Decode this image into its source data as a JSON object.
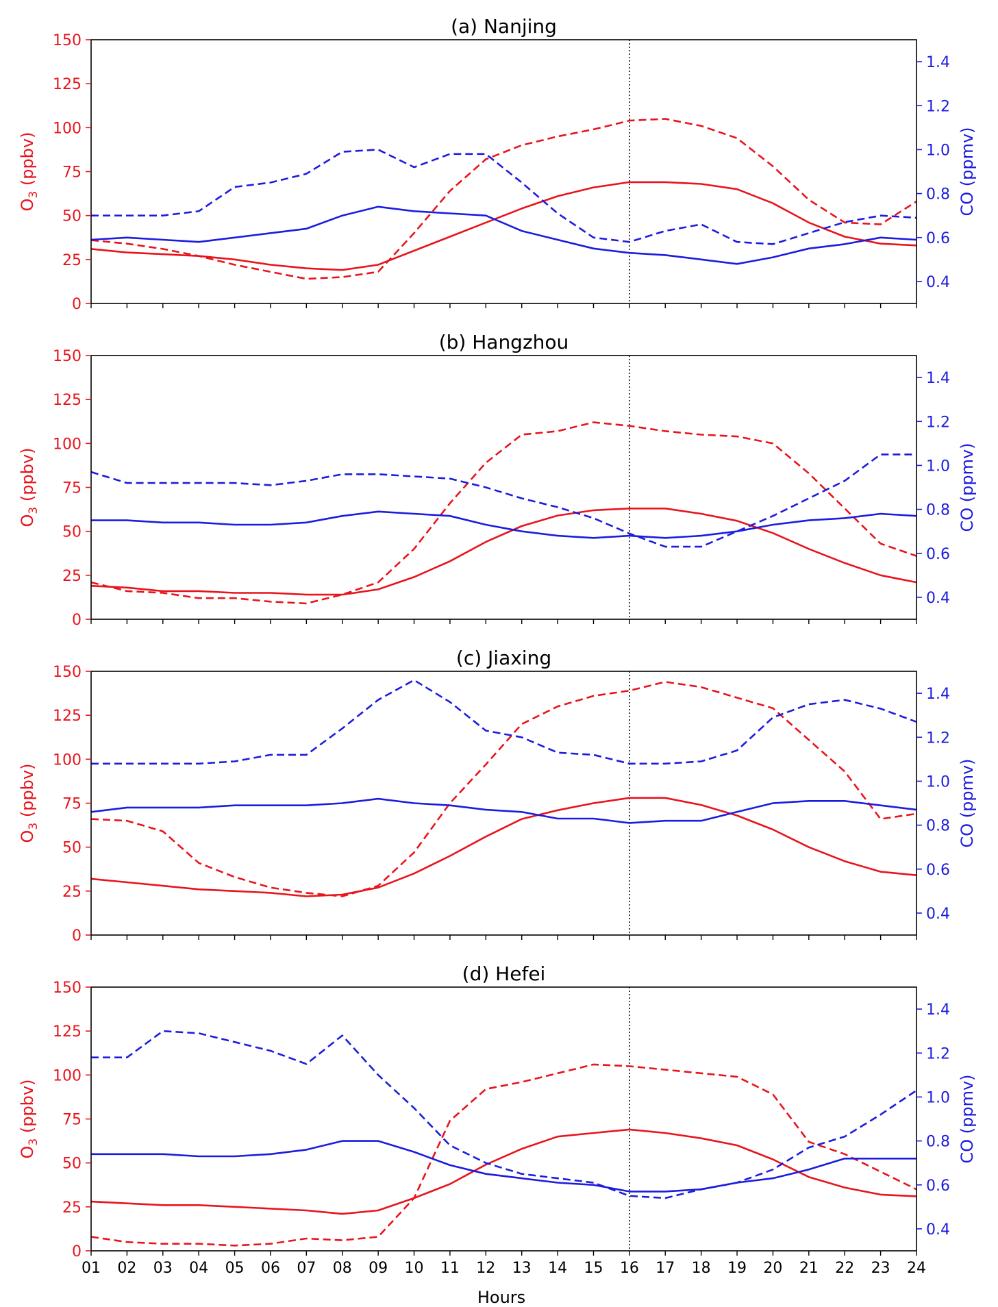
{
  "figure": {
    "xlabel": "Hours",
    "x_ticks": [
      "01",
      "02",
      "03",
      "04",
      "05",
      "06",
      "07",
      "08",
      "09",
      "10",
      "11",
      "12",
      "13",
      "14",
      "15",
      "16",
      "17",
      "18",
      "19",
      "20",
      "21",
      "22",
      "23",
      "24"
    ],
    "marker_hour": 16,
    "colors": {
      "o3": "#e8141c",
      "co": "#1c1ce0",
      "axis": "#000000"
    }
  },
  "chart_data": [
    {
      "type": "line",
      "title": "(a) Nanjing",
      "x": [
        1,
        2,
        3,
        4,
        5,
        6,
        7,
        8,
        9,
        10,
        11,
        12,
        13,
        14,
        15,
        16,
        17,
        18,
        19,
        20,
        21,
        22,
        23,
        24
      ],
      "ylabel_left": "O3 (ppbv)",
      "ylabel_right": "CO (ppmv)",
      "ylim_left": [
        0,
        150
      ],
      "ylim_right": [
        0.3,
        1.5
      ],
      "yticks_left": [
        0,
        25,
        50,
        75,
        100,
        125,
        150
      ],
      "yticks_right": [
        0.4,
        0.6,
        0.8,
        1.0,
        1.2,
        1.4
      ],
      "series": [
        {
          "name": "O3 solid",
          "axis": "left",
          "color": "o3",
          "dash": false,
          "values": [
            31,
            29,
            28,
            27,
            25,
            22,
            20,
            19,
            22,
            30,
            38,
            46,
            54,
            61,
            66,
            69,
            69,
            68,
            65,
            57,
            46,
            38,
            34,
            33
          ]
        },
        {
          "name": "O3 dashed",
          "axis": "left",
          "color": "o3",
          "dash": true,
          "values": [
            36,
            34,
            31,
            27,
            22,
            18,
            14,
            15,
            18,
            40,
            64,
            82,
            90,
            95,
            99,
            104,
            105,
            101,
            94,
            78,
            59,
            46,
            45,
            58
          ]
        },
        {
          "name": "CO solid",
          "axis": "right",
          "color": "co",
          "dash": false,
          "values": [
            0.59,
            0.6,
            0.59,
            0.58,
            0.6,
            0.62,
            0.64,
            0.7,
            0.74,
            0.72,
            0.71,
            0.7,
            0.63,
            0.59,
            0.55,
            0.53,
            0.52,
            0.5,
            0.48,
            0.51,
            0.55,
            0.57,
            0.6,
            0.59
          ]
        },
        {
          "name": "CO dashed",
          "axis": "right",
          "color": "co",
          "dash": true,
          "values": [
            0.7,
            0.7,
            0.7,
            0.72,
            0.83,
            0.85,
            0.89,
            0.99,
            1.0,
            0.92,
            0.98,
            0.98,
            0.85,
            0.71,
            0.6,
            0.58,
            0.63,
            0.66,
            0.58,
            0.57,
            0.62,
            0.67,
            0.7,
            0.69
          ]
        }
      ]
    },
    {
      "type": "line",
      "title": "(b) Hangzhou",
      "x": [
        1,
        2,
        3,
        4,
        5,
        6,
        7,
        8,
        9,
        10,
        11,
        12,
        13,
        14,
        15,
        16,
        17,
        18,
        19,
        20,
        21,
        22,
        23,
        24
      ],
      "ylabel_left": "O3 (ppbv)",
      "ylabel_right": "CO (ppmv)",
      "ylim_left": [
        0,
        150
      ],
      "ylim_right": [
        0.3,
        1.5
      ],
      "yticks_left": [
        0,
        25,
        50,
        75,
        100,
        125,
        150
      ],
      "yticks_right": [
        0.4,
        0.6,
        0.8,
        1.0,
        1.2,
        1.4
      ],
      "series": [
        {
          "name": "O3 solid",
          "axis": "left",
          "color": "o3",
          "dash": false,
          "values": [
            19,
            18,
            16,
            16,
            15,
            15,
            14,
            14,
            17,
            24,
            33,
            44,
            53,
            59,
            62,
            63,
            63,
            60,
            56,
            49,
            40,
            32,
            25,
            21
          ]
        },
        {
          "name": "O3 dashed",
          "axis": "left",
          "color": "o3",
          "dash": true,
          "values": [
            21,
            16,
            15,
            12,
            12,
            10,
            9,
            14,
            21,
            40,
            66,
            89,
            105,
            107,
            112,
            110,
            107,
            105,
            104,
            100,
            83,
            63,
            43,
            36
          ]
        },
        {
          "name": "CO solid",
          "axis": "right",
          "color": "co",
          "dash": false,
          "values": [
            0.75,
            0.75,
            0.74,
            0.74,
            0.73,
            0.73,
            0.74,
            0.77,
            0.79,
            0.78,
            0.77,
            0.73,
            0.7,
            0.68,
            0.67,
            0.68,
            0.67,
            0.68,
            0.7,
            0.73,
            0.75,
            0.76,
            0.78,
            0.77
          ]
        },
        {
          "name": "CO dashed",
          "axis": "right",
          "color": "co",
          "dash": true,
          "values": [
            0.97,
            0.92,
            0.92,
            0.92,
            0.92,
            0.91,
            0.93,
            0.96,
            0.96,
            0.95,
            0.94,
            0.9,
            0.85,
            0.81,
            0.76,
            0.69,
            0.63,
            0.63,
            0.7,
            0.77,
            0.85,
            0.93,
            1.05,
            1.05
          ]
        }
      ]
    },
    {
      "type": "line",
      "title": "(c) Jiaxing",
      "x": [
        1,
        2,
        3,
        4,
        5,
        6,
        7,
        8,
        9,
        10,
        11,
        12,
        13,
        14,
        15,
        16,
        17,
        18,
        19,
        20,
        21,
        22,
        23,
        24
      ],
      "ylabel_left": "O3 (ppbv)",
      "ylabel_right": "CO (ppmv)",
      "ylim_left": [
        0,
        150
      ],
      "ylim_right": [
        0.3,
        1.5
      ],
      "yticks_left": [
        0,
        25,
        50,
        75,
        100,
        125,
        150
      ],
      "yticks_right": [
        0.4,
        0.6,
        0.8,
        1.0,
        1.2,
        1.4
      ],
      "series": [
        {
          "name": "O3 solid",
          "axis": "left",
          "color": "o3",
          "dash": false,
          "values": [
            32,
            30,
            28,
            26,
            25,
            24,
            22,
            23,
            27,
            35,
            45,
            56,
            66,
            71,
            75,
            78,
            78,
            74,
            68,
            60,
            50,
            42,
            36,
            34
          ]
        },
        {
          "name": "O3 dashed",
          "axis": "left",
          "color": "o3",
          "dash": true,
          "values": [
            66,
            65,
            59,
            41,
            33,
            27,
            24,
            22,
            28,
            47,
            75,
            97,
            120,
            130,
            136,
            139,
            144,
            141,
            135,
            129,
            111,
            93,
            66,
            69
          ]
        },
        {
          "name": "CO solid",
          "axis": "right",
          "color": "co",
          "dash": false,
          "values": [
            0.86,
            0.88,
            0.88,
            0.88,
            0.89,
            0.89,
            0.89,
            0.9,
            0.92,
            0.9,
            0.89,
            0.87,
            0.86,
            0.83,
            0.83,
            0.81,
            0.82,
            0.82,
            0.86,
            0.9,
            0.91,
            0.91,
            0.89,
            0.87
          ]
        },
        {
          "name": "CO dashed",
          "axis": "right",
          "color": "co",
          "dash": true,
          "values": [
            1.08,
            1.08,
            1.08,
            1.08,
            1.09,
            1.12,
            1.12,
            1.24,
            1.37,
            1.46,
            1.36,
            1.23,
            1.2,
            1.13,
            1.12,
            1.08,
            1.08,
            1.09,
            1.14,
            1.29,
            1.35,
            1.37,
            1.33,
            1.27
          ]
        }
      ]
    },
    {
      "type": "line",
      "title": "(d) Hefei",
      "x": [
        1,
        2,
        3,
        4,
        5,
        6,
        7,
        8,
        9,
        10,
        11,
        12,
        13,
        14,
        15,
        16,
        17,
        18,
        19,
        20,
        21,
        22,
        23,
        24
      ],
      "ylabel_left": "O3 (ppbv)",
      "ylabel_right": "CO (ppmv)",
      "ylim_left": [
        0,
        150
      ],
      "ylim_right": [
        0.3,
        1.5
      ],
      "yticks_left": [
        0,
        25,
        50,
        75,
        100,
        125,
        150
      ],
      "yticks_right": [
        0.4,
        0.6,
        0.8,
        1.0,
        1.2,
        1.4
      ],
      "series": [
        {
          "name": "O3 solid",
          "axis": "left",
          "color": "o3",
          "dash": false,
          "values": [
            28,
            27,
            26,
            26,
            25,
            24,
            23,
            21,
            23,
            30,
            38,
            49,
            58,
            65,
            67,
            69,
            67,
            64,
            60,
            52,
            42,
            36,
            32,
            31
          ]
        },
        {
          "name": "O3 dashed",
          "axis": "left",
          "color": "o3",
          "dash": true,
          "values": [
            8,
            5,
            4,
            4,
            3,
            4,
            7,
            6,
            8,
            30,
            74,
            92,
            96,
            101,
            106,
            105,
            103,
            101,
            99,
            89,
            62,
            55,
            45,
            35
          ]
        },
        {
          "name": "CO solid",
          "axis": "right",
          "color": "co",
          "dash": false,
          "values": [
            0.74,
            0.74,
            0.74,
            0.73,
            0.73,
            0.74,
            0.76,
            0.8,
            0.8,
            0.75,
            0.69,
            0.65,
            0.63,
            0.61,
            0.6,
            0.57,
            0.57,
            0.58,
            0.61,
            0.63,
            0.67,
            0.72,
            0.72,
            0.72
          ]
        },
        {
          "name": "CO dashed",
          "axis": "right",
          "color": "co",
          "dash": true,
          "values": [
            1.18,
            1.18,
            1.3,
            1.29,
            1.25,
            1.21,
            1.15,
            1.28,
            1.1,
            0.95,
            0.78,
            0.7,
            0.65,
            0.63,
            0.61,
            0.55,
            0.54,
            0.58,
            0.61,
            0.67,
            0.77,
            0.82,
            0.92,
            1.03
          ]
        }
      ]
    }
  ]
}
